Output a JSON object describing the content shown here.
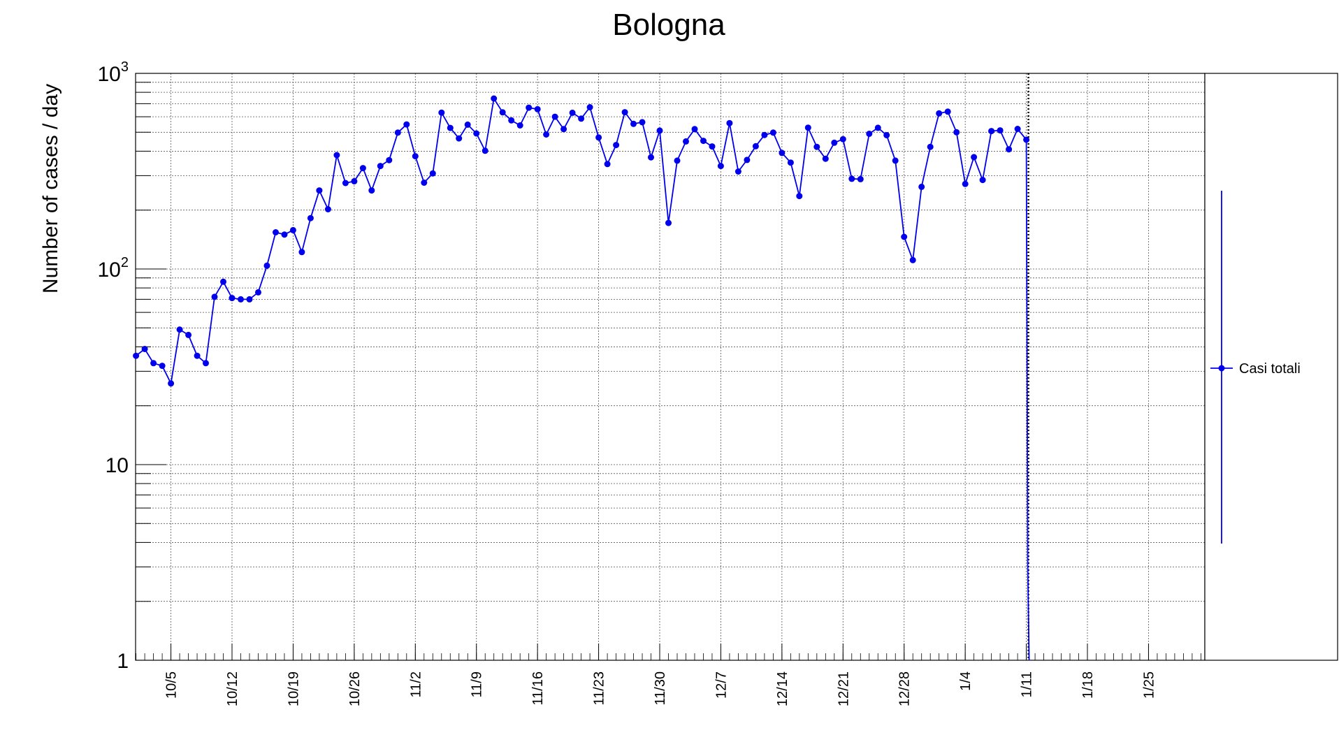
{
  "chart_data": {
    "type": "line",
    "title": "Bologna",
    "ylabel": "Number of cases / day",
    "xlabel": "",
    "yscale": "log",
    "ylim": [
      1,
      1000
    ],
    "grid": true,
    "x_start_date": "2020-10-01",
    "x_end_date": "2021-01-31",
    "x_tick_labels": [
      "10/5",
      "10/12",
      "10/19",
      "10/26",
      "11/2",
      "11/9",
      "11/16",
      "11/23",
      "11/30",
      "12/7",
      "12/14",
      "12/21",
      "12/28",
      "1/4",
      "1/11",
      "1/18",
      "1/25"
    ],
    "y_tick_labels": [
      {
        "base": "1",
        "exp": ""
      },
      {
        "base": "10",
        "exp": ""
      },
      {
        "base": "10",
        "exp": "2"
      },
      {
        "base": "10",
        "exp": "3"
      }
    ],
    "legend": {
      "position": "right",
      "entries": [
        "Casi totali"
      ]
    },
    "marker_date": "2021-01-11",
    "series": [
      {
        "name": "Casi totali",
        "color": "#0000ee",
        "dates": [
          "2020-10-01",
          "2020-10-02",
          "2020-10-03",
          "2020-10-04",
          "2020-10-05",
          "2020-10-06",
          "2020-10-07",
          "2020-10-08",
          "2020-10-09",
          "2020-10-10",
          "2020-10-11",
          "2020-10-12",
          "2020-10-13",
          "2020-10-14",
          "2020-10-15",
          "2020-10-16",
          "2020-10-17",
          "2020-10-18",
          "2020-10-19",
          "2020-10-20",
          "2020-10-21",
          "2020-10-22",
          "2020-10-23",
          "2020-10-24",
          "2020-10-25",
          "2020-10-26",
          "2020-10-27",
          "2020-10-28",
          "2020-10-29",
          "2020-10-30",
          "2020-10-31",
          "2020-11-01",
          "2020-11-02",
          "2020-11-03",
          "2020-11-04",
          "2020-11-05",
          "2020-11-06",
          "2020-11-07",
          "2020-11-08",
          "2020-11-09",
          "2020-11-10",
          "2020-11-11",
          "2020-11-12",
          "2020-11-13",
          "2020-11-14",
          "2020-11-15",
          "2020-11-16",
          "2020-11-17",
          "2020-11-18",
          "2020-11-19",
          "2020-11-20",
          "2020-11-21",
          "2020-11-22",
          "2020-11-23",
          "2020-11-24",
          "2020-11-25",
          "2020-11-26",
          "2020-11-27",
          "2020-11-28",
          "2020-11-29",
          "2020-11-30",
          "2020-12-01",
          "2020-12-02",
          "2020-12-03",
          "2020-12-04",
          "2020-12-05",
          "2020-12-06",
          "2020-12-07",
          "2020-12-08",
          "2020-12-09",
          "2020-12-10",
          "2020-12-11",
          "2020-12-12",
          "2020-12-13",
          "2020-12-14",
          "2020-12-15",
          "2020-12-16",
          "2020-12-17",
          "2020-12-18",
          "2020-12-19",
          "2020-12-20",
          "2020-12-21",
          "2020-12-22",
          "2020-12-23",
          "2020-12-24",
          "2020-12-25",
          "2020-12-26",
          "2020-12-27",
          "2020-12-28",
          "2020-12-29",
          "2020-12-30",
          "2020-12-31",
          "2021-01-01",
          "2021-01-02",
          "2021-01-03",
          "2021-01-04",
          "2021-01-05",
          "2021-01-06",
          "2021-01-07",
          "2021-01-08",
          "2021-01-09",
          "2021-01-10",
          "2021-01-11"
        ],
        "values": [
          36,
          39,
          33,
          32,
          26,
          49,
          46,
          36,
          33,
          72,
          86,
          71,
          70,
          70,
          76,
          104,
          154,
          150,
          158,
          122,
          182,
          252,
          202,
          382,
          275,
          281,
          328,
          252,
          336,
          360,
          498,
          548,
          377,
          276,
          308,
          630,
          526,
          465,
          547,
          493,
          402,
          744,
          632,
          575,
          542,
          668,
          656,
          487,
          600,
          519,
          629,
          587,
          671,
          470,
          344,
          430,
          633,
          552,
          563,
          372,
          510,
          172,
          358,
          449,
          519,
          452,
          423,
          336,
          557,
          315,
          361,
          424,
          484,
          498,
          392,
          350,
          236,
          528,
          421,
          366,
          442,
          461,
          289,
          288,
          491,
          527,
          483,
          358,
          146,
          111,
          263,
          421,
          624,
          637,
          500,
          272,
          373,
          285,
          507,
          511,
          409,
          520,
          458
        ]
      }
    ]
  }
}
